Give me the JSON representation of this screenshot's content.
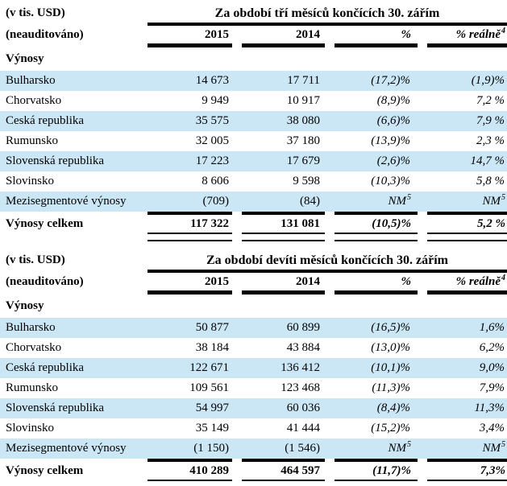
{
  "colors": {
    "stripe_blue": "#cbe7f6",
    "rule_black": "#000000",
    "text": "#000000",
    "background": "#ffffff"
  },
  "tables": [
    {
      "unit_label": "(v tis. USD)",
      "audit_label": "(neauditováno)",
      "title": "Za období tří měsíců končících 30. zářím",
      "columns": [
        "2015",
        "2014",
        "%",
        "% reálně"
      ],
      "columns_sup": [
        "",
        "",
        "",
        "4"
      ],
      "section_label": "Výnosy",
      "rows": [
        {
          "label": "Bulharsko",
          "y2015": "14 673",
          "y2014": "17 711",
          "pct": "(17,2)%",
          "pct_real": "(1,9)%"
        },
        {
          "label": "Chorvatsko",
          "y2015": "9 949",
          "y2014": "10 917",
          "pct": "(8,9)%",
          "pct_real": "7,2 %"
        },
        {
          "label": "Ceská republika",
          "y2015": "35 575",
          "y2014": "38 080",
          "pct": "(6,6)%",
          "pct_real": "7,9 %"
        },
        {
          "label": "Rumunsko",
          "y2015": "32 005",
          "y2014": "37 180",
          "pct": "(13,9)%",
          "pct_real": "2,3 %"
        },
        {
          "label": "Slovenská republika",
          "y2015": "17 223",
          "y2014": "17 679",
          "pct": "(2,6)%",
          "pct_real": "14,7 %"
        },
        {
          "label": "Slovinsko",
          "y2015": "8 606",
          "y2014": "9 598",
          "pct": "(10,3)%",
          "pct_real": "5,8 %"
        },
        {
          "label": "Mezisegmentové výnosy",
          "y2015": "(709)",
          "y2014": "(84)",
          "pct": "NM",
          "pct_sup": "5",
          "pct_real": "NM",
          "pct_real_sup": "5"
        }
      ],
      "total": {
        "label": "Výnosy celkem",
        "y2015": "117 322",
        "y2014": "131 081",
        "pct": "(10,5)%",
        "pct_real": "5,2 %"
      }
    },
    {
      "unit_label": "(v tis. USD)",
      "audit_label": "(neauditováno)",
      "title": "Za období devíti měsíců končících 30. zářím",
      "columns": [
        "2015",
        "2014",
        "%",
        "% reálně"
      ],
      "columns_sup": [
        "",
        "",
        "",
        "4"
      ],
      "section_label": "Výnosy",
      "rows": [
        {
          "label": "Bulharsko",
          "y2015": "50 877",
          "y2014": "60 899",
          "pct": "(16,5)%",
          "pct_real": "1,6%"
        },
        {
          "label": "Chorvatsko",
          "y2015": "38 184",
          "y2014": "43 884",
          "pct": "(13,0)%",
          "pct_real": "6,2%"
        },
        {
          "label": "Ceská republika",
          "y2015": "122 671",
          "y2014": "136 412",
          "pct": "(10,1)%",
          "pct_real": "9,0%"
        },
        {
          "label": "Rumunsko",
          "y2015": "109 561",
          "y2014": "123 468",
          "pct": "(11,3)%",
          "pct_real": "7,9%"
        },
        {
          "label": "Slovenská republika",
          "y2015": "54 997",
          "y2014": "60 036",
          "pct": "(8,4)%",
          "pct_real": "11,3%"
        },
        {
          "label": "Slovinsko",
          "y2015": "35 149",
          "y2014": "41 444",
          "pct": "(15,2)%",
          "pct_real": "3,4%"
        },
        {
          "label": "Mezisegmentové výnosy",
          "y2015": "(1 150)",
          "y2014": "(1 546)",
          "pct": "NM",
          "pct_sup": "5",
          "pct_real": "NM",
          "pct_real_sup": "5"
        }
      ],
      "total": {
        "label": "Výnosy celkem",
        "y2015": "410 289",
        "y2014": "464 597",
        "pct": "(11,7)%",
        "pct_real": "7,3%"
      }
    }
  ]
}
